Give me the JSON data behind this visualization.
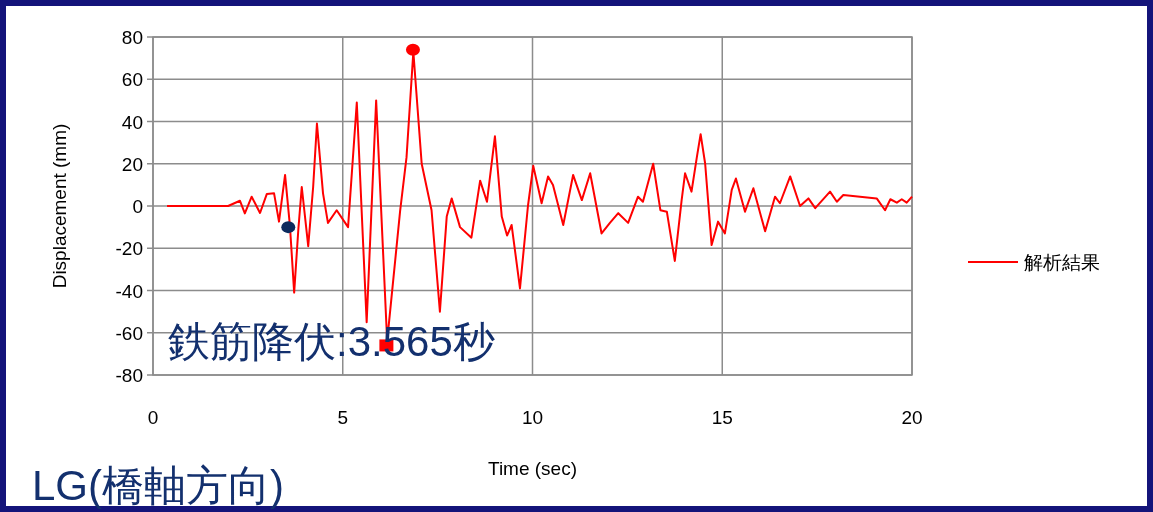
{
  "chart_data": {
    "type": "line",
    "title": "LG(橋軸方向)",
    "xlabel": "Time (sec)",
    "ylabel": "Displacement (mm)",
    "xlim": [
      0,
      20
    ],
    "ylim": [
      -80,
      80
    ],
    "xticks": [
      0,
      5,
      10,
      15,
      20
    ],
    "yticks": [
      -80,
      -60,
      -40,
      -20,
      0,
      20,
      40,
      60,
      80
    ],
    "grid": true,
    "legend": "right",
    "annotations": [
      "鉄筋降伏:3.565秒"
    ],
    "series": [
      {
        "name": "解析結果",
        "color": "#ff0000",
        "x": [
          0.37,
          1.98,
          2.29,
          2.42,
          2.6,
          2.82,
          3.0,
          3.19,
          3.32,
          3.48,
          3.61,
          3.72,
          3.83,
          3.92,
          4.09,
          4.22,
          4.32,
          4.48,
          4.61,
          4.84,
          5.14,
          5.37,
          5.63,
          5.88,
          6.17,
          6.51,
          6.68,
          6.86,
          7.08,
          7.34,
          7.56,
          7.74,
          7.87,
          8.09,
          8.39,
          8.62,
          8.8,
          9.01,
          9.19,
          9.33,
          9.45,
          9.67,
          9.88,
          10.02,
          10.24,
          10.41,
          10.54,
          10.81,
          11.07,
          11.3,
          11.52,
          11.82,
          12.04,
          12.26,
          12.52,
          12.78,
          12.91,
          13.18,
          13.37,
          13.54,
          13.75,
          13.93,
          14.02,
          14.19,
          14.33,
          14.43,
          14.55,
          14.72,
          14.89,
          15.07,
          15.25,
          15.36,
          15.6,
          15.82,
          16.13,
          16.39,
          16.52,
          16.79,
          17.05,
          17.27,
          17.45,
          17.84,
          18.02,
          18.19,
          19.07,
          19.29,
          19.43,
          19.6,
          19.73,
          19.86,
          20.0
        ],
        "values": [
          0,
          0,
          2.5,
          -3.5,
          4.4,
          -3.3,
          5.7,
          6,
          -7.4,
          14.7,
          -9.8,
          -41,
          -11,
          9,
          -19,
          9,
          39,
          6,
          -8,
          -2,
          -10,
          49,
          -55,
          50,
          -64,
          -2.7,
          23,
          73,
          20,
          -2,
          -50,
          -5,
          3.6,
          -10,
          -15,
          12,
          2,
          33,
          -5,
          -14,
          -9,
          -39,
          0,
          19,
          1.3,
          14,
          10,
          -9,
          14.7,
          2.8,
          15.5,
          -13,
          -8,
          -3.4,
          -8,
          4.4,
          2,
          20,
          -2,
          -2.7,
          -26,
          2.8,
          15.5,
          6.8,
          23,
          34,
          20,
          -18.5,
          -7.4,
          -13,
          7.6,
          13,
          -2.7,
          8.4,
          -12,
          4.4,
          1.3,
          14,
          0,
          3.6,
          -1,
          6.8,
          2,
          5.2,
          3.6,
          -2,
          3.2,
          1.6,
          3.2,
          1.6,
          4.4
        ]
      },
      {
        "type": "scatter",
        "marker": "circle",
        "color": "#0d2b5e",
        "x": [
          3.565
        ],
        "values": [
          -10
        ]
      },
      {
        "type": "scatter",
        "marker": "circle",
        "color": "#ff0000",
        "x": [
          6.85
        ],
        "values": [
          74
        ]
      },
      {
        "type": "scatter",
        "marker": "square",
        "color": "#ff0000",
        "x": [
          6.15
        ],
        "values": [
          -66
        ]
      }
    ]
  }
}
